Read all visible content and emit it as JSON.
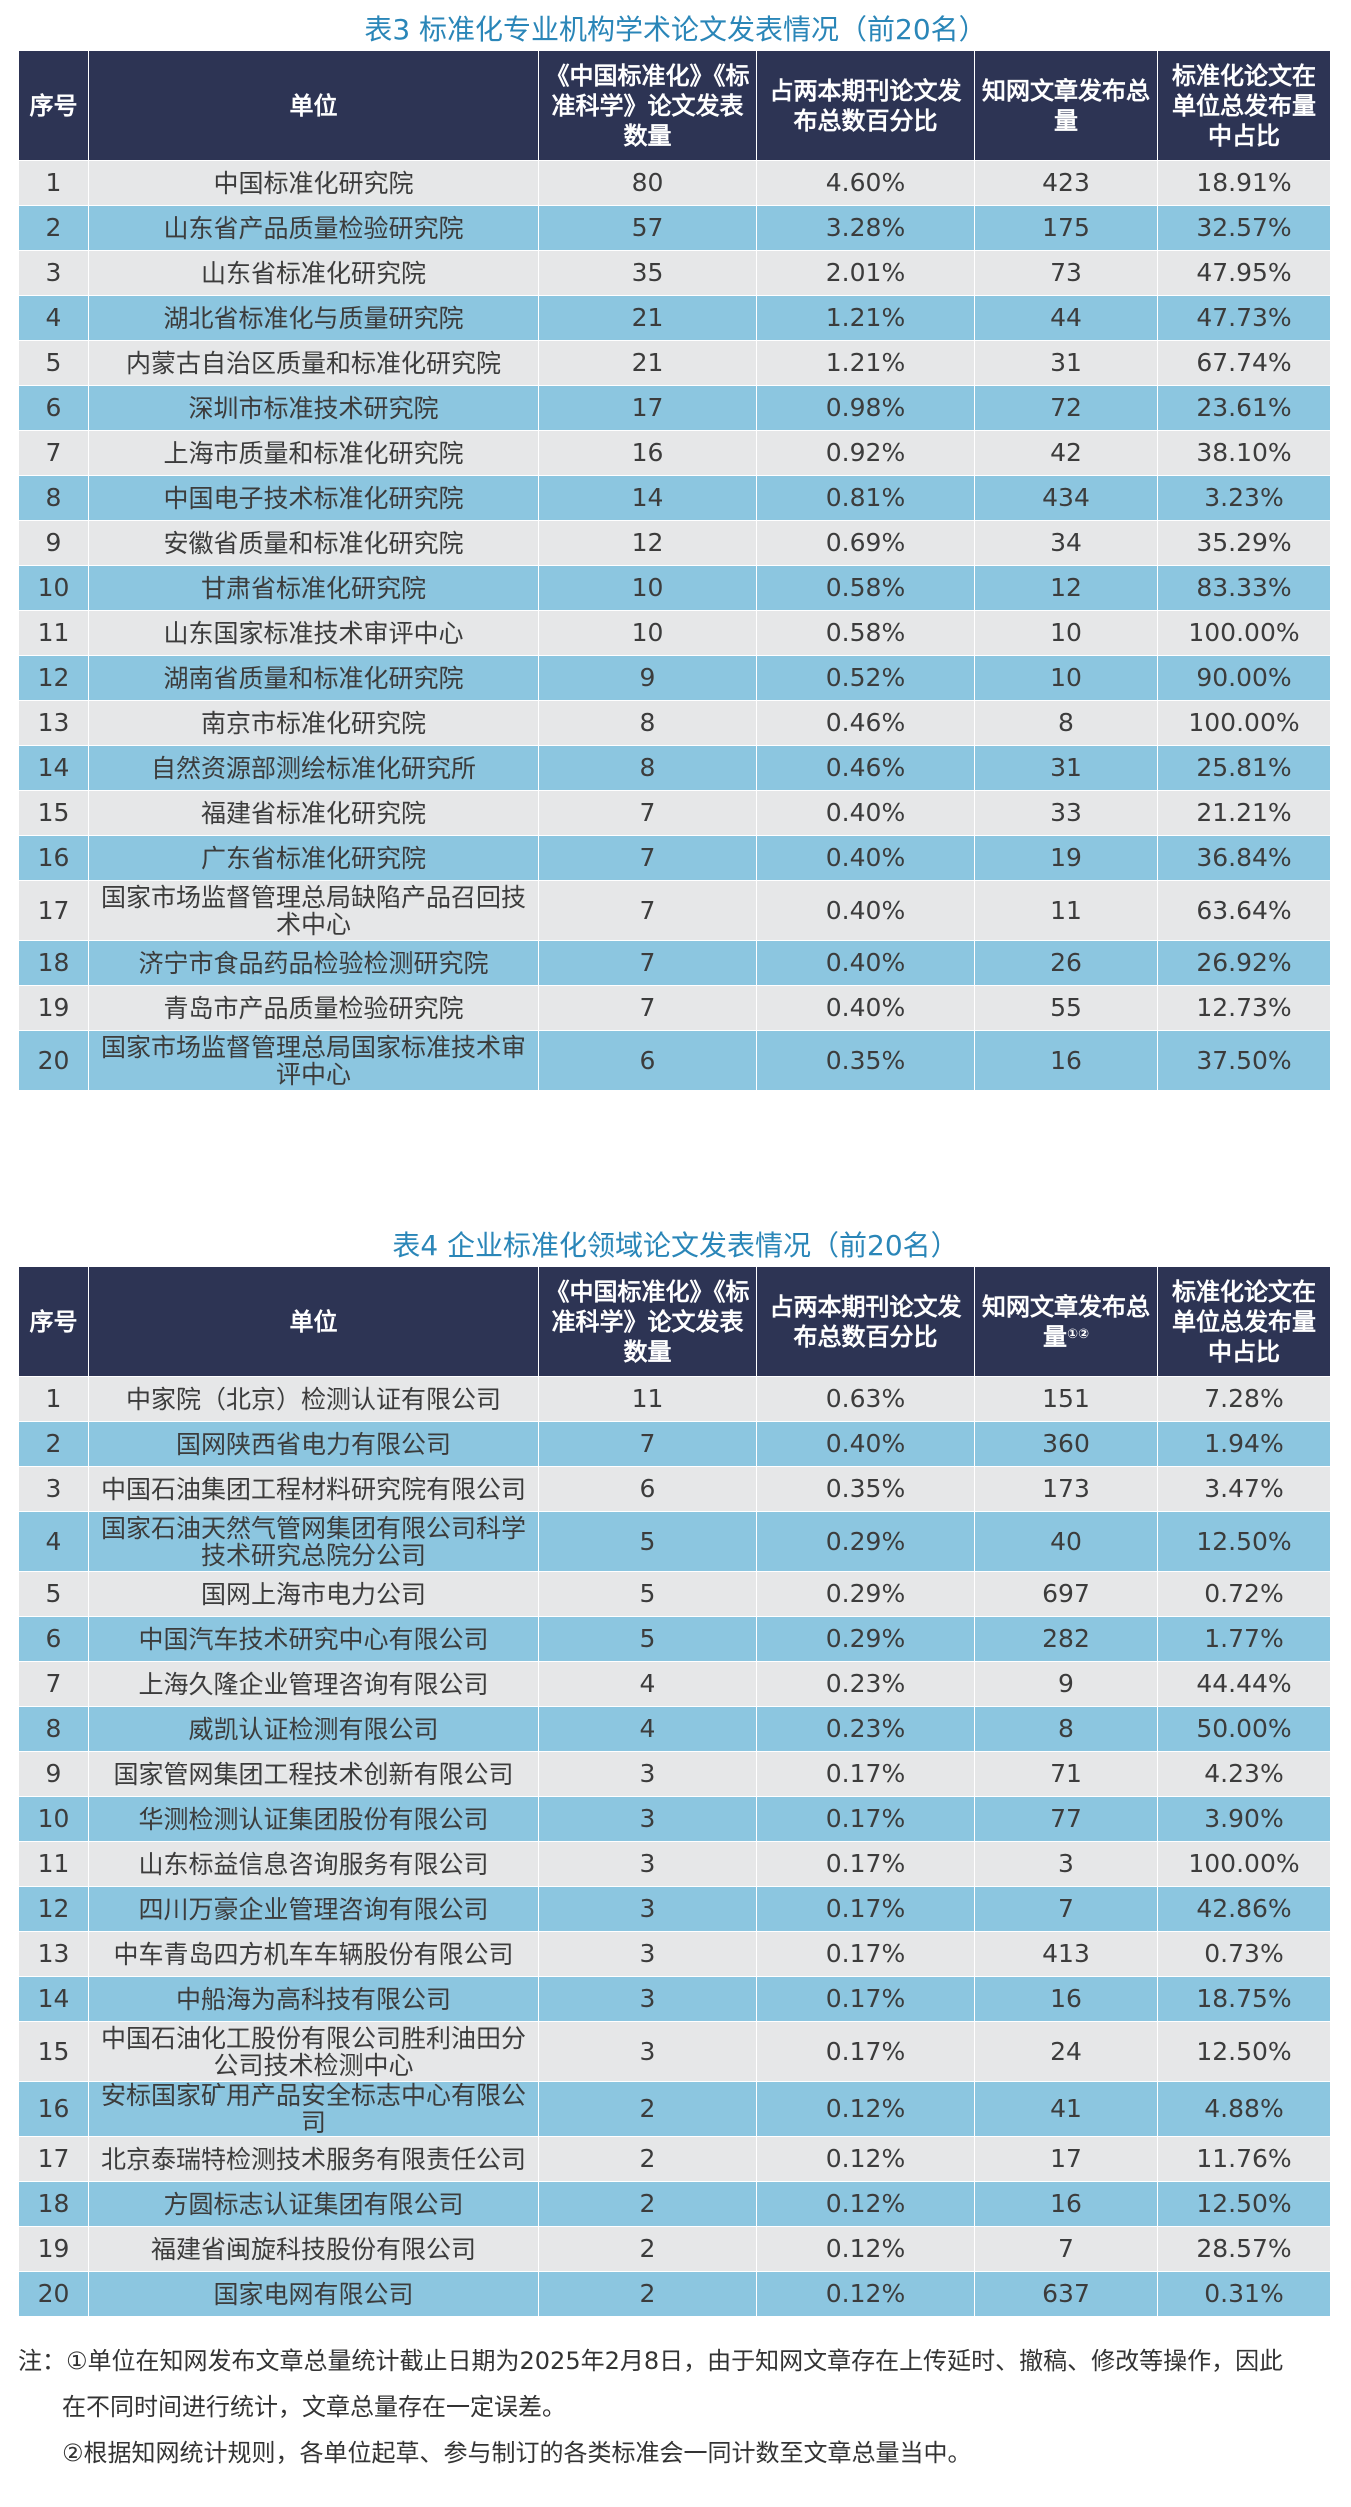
{
  "table3": {
    "title": "表3  标准化专业机构学术论文发表情况（前20名）",
    "headers": {
      "rank": "序号",
      "unit": "单位",
      "journals": "《中国标准化》《标准科学》论文发表数量",
      "percent": "占两本期刊论文发布总数百分比",
      "cnki": "知网文章发布总量",
      "share": "标准化论文在单位总发布量中占比"
    },
    "rows": [
      {
        "rank": "1",
        "unit": "中国标准化研究院",
        "count": "80",
        "pct": "4.60%",
        "cnki": "423",
        "share": "18.91%"
      },
      {
        "rank": "2",
        "unit": "山东省产品质量检验研究院",
        "count": "57",
        "pct": "3.28%",
        "cnki": "175",
        "share": "32.57%"
      },
      {
        "rank": "3",
        "unit": "山东省标准化研究院",
        "count": "35",
        "pct": "2.01%",
        "cnki": "73",
        "share": "47.95%"
      },
      {
        "rank": "4",
        "unit": "湖北省标准化与质量研究院",
        "count": "21",
        "pct": "1.21%",
        "cnki": "44",
        "share": "47.73%"
      },
      {
        "rank": "5",
        "unit": "内蒙古自治区质量和标准化研究院",
        "count": "21",
        "pct": "1.21%",
        "cnki": "31",
        "share": "67.74%"
      },
      {
        "rank": "6",
        "unit": "深圳市标准技术研究院",
        "count": "17",
        "pct": "0.98%",
        "cnki": "72",
        "share": "23.61%"
      },
      {
        "rank": "7",
        "unit": "上海市质量和标准化研究院",
        "count": "16",
        "pct": "0.92%",
        "cnki": "42",
        "share": "38.10%"
      },
      {
        "rank": "8",
        "unit": "中国电子技术标准化研究院",
        "count": "14",
        "pct": "0.81%",
        "cnki": "434",
        "share": "3.23%"
      },
      {
        "rank": "9",
        "unit": "安徽省质量和标准化研究院",
        "count": "12",
        "pct": "0.69%",
        "cnki": "34",
        "share": "35.29%"
      },
      {
        "rank": "10",
        "unit": "甘肃省标准化研究院",
        "count": "10",
        "pct": "0.58%",
        "cnki": "12",
        "share": "83.33%"
      },
      {
        "rank": "11",
        "unit": "山东国家标准技术审评中心",
        "count": "10",
        "pct": "0.58%",
        "cnki": "10",
        "share": "100.00%"
      },
      {
        "rank": "12",
        "unit": "湖南省质量和标准化研究院",
        "count": "9",
        "pct": "0.52%",
        "cnki": "10",
        "share": "90.00%"
      },
      {
        "rank": "13",
        "unit": "南京市标准化研究院",
        "count": "8",
        "pct": "0.46%",
        "cnki": "8",
        "share": "100.00%"
      },
      {
        "rank": "14",
        "unit": "自然资源部测绘标准化研究所",
        "count": "8",
        "pct": "0.46%",
        "cnki": "31",
        "share": "25.81%"
      },
      {
        "rank": "15",
        "unit": "福建省标准化研究院",
        "count": "7",
        "pct": "0.40%",
        "cnki": "33",
        "share": "21.21%"
      },
      {
        "rank": "16",
        "unit": "广东省标准化研究院",
        "count": "7",
        "pct": "0.40%",
        "cnki": "19",
        "share": "36.84%"
      },
      {
        "rank": "17",
        "unit": "国家市场监督管理总局缺陷产品召回技术中心",
        "count": "7",
        "pct": "0.40%",
        "cnki": "11",
        "share": "63.64%"
      },
      {
        "rank": "18",
        "unit": "济宁市食品药品检验检测研究院",
        "count": "7",
        "pct": "0.40%",
        "cnki": "26",
        "share": "26.92%"
      },
      {
        "rank": "19",
        "unit": "青岛市产品质量检验研究院",
        "count": "7",
        "pct": "0.40%",
        "cnki": "55",
        "share": "12.73%"
      },
      {
        "rank": "20",
        "unit": "国家市场监督管理总局国家标准技术审评中心",
        "count": "6",
        "pct": "0.35%",
        "cnki": "16",
        "share": "37.50%"
      }
    ]
  },
  "table4": {
    "title": "表4  企业标准化领域论文发表情况（前20名）",
    "headers": {
      "rank": "序号",
      "unit": "单位",
      "journals": "《中国标准化》《标准科学》论文发表数量",
      "percent": "占两本期刊论文发布总数百分比",
      "cnki": "知网文章发布总量",
      "cnki_mark": "①②",
      "share": "标准化论文在单位总发布量中占比"
    },
    "rows": [
      {
        "rank": "1",
        "unit": "中家院（北京）检测认证有限公司",
        "count": "11",
        "pct": "0.63%",
        "cnki": "151",
        "share": "7.28%"
      },
      {
        "rank": "2",
        "unit": "国网陕西省电力有限公司",
        "count": "7",
        "pct": "0.40%",
        "cnki": "360",
        "share": "1.94%"
      },
      {
        "rank": "3",
        "unit": "中国石油集团工程材料研究院有限公司",
        "count": "6",
        "pct": "0.35%",
        "cnki": "173",
        "share": "3.47%"
      },
      {
        "rank": "4",
        "unit": "国家石油天然气管网集团有限公司科学技术研究总院分公司",
        "count": "5",
        "pct": "0.29%",
        "cnki": "40",
        "share": "12.50%"
      },
      {
        "rank": "5",
        "unit": "国网上海市电力公司",
        "count": "5",
        "pct": "0.29%",
        "cnki": "697",
        "share": "0.72%"
      },
      {
        "rank": "6",
        "unit": "中国汽车技术研究中心有限公司",
        "count": "5",
        "pct": "0.29%",
        "cnki": "282",
        "share": "1.77%"
      },
      {
        "rank": "7",
        "unit": "上海久隆企业管理咨询有限公司",
        "count": "4",
        "pct": "0.23%",
        "cnki": "9",
        "share": "44.44%"
      },
      {
        "rank": "8",
        "unit": "威凯认证检测有限公司",
        "count": "4",
        "pct": "0.23%",
        "cnki": "8",
        "share": "50.00%"
      },
      {
        "rank": "9",
        "unit": "国家管网集团工程技术创新有限公司",
        "count": "3",
        "pct": "0.17%",
        "cnki": "71",
        "share": "4.23%"
      },
      {
        "rank": "10",
        "unit": "华测检测认证集团股份有限公司",
        "count": "3",
        "pct": "0.17%",
        "cnki": "77",
        "share": "3.90%"
      },
      {
        "rank": "11",
        "unit": "山东标益信息咨询服务有限公司",
        "count": "3",
        "pct": "0.17%",
        "cnki": "3",
        "share": "100.00%"
      },
      {
        "rank": "12",
        "unit": "四川万豪企业管理咨询有限公司",
        "count": "3",
        "pct": "0.17%",
        "cnki": "7",
        "share": "42.86%"
      },
      {
        "rank": "13",
        "unit": "中车青岛四方机车车辆股份有限公司",
        "count": "3",
        "pct": "0.17%",
        "cnki": "413",
        "share": "0.73%"
      },
      {
        "rank": "14",
        "unit": "中船海为高科技有限公司",
        "count": "3",
        "pct": "0.17%",
        "cnki": "16",
        "share": "18.75%"
      },
      {
        "rank": "15",
        "unit": "中国石油化工股份有限公司胜利油田分公司技术检测中心",
        "count": "3",
        "pct": "0.17%",
        "cnki": "24",
        "share": "12.50%"
      },
      {
        "rank": "16",
        "unit": "安标国家矿用产品安全标志中心有限公司",
        "count": "2",
        "pct": "0.12%",
        "cnki": "41",
        "share": "4.88%"
      },
      {
        "rank": "17",
        "unit": "北京泰瑞特检测技术服务有限责任公司",
        "count": "2",
        "pct": "0.12%",
        "cnki": "17",
        "share": "11.76%"
      },
      {
        "rank": "18",
        "unit": "方圆标志认证集团有限公司",
        "count": "2",
        "pct": "0.12%",
        "cnki": "16",
        "share": "12.50%"
      },
      {
        "rank": "19",
        "unit": "福建省闽旋科技股份有限公司",
        "count": "2",
        "pct": "0.12%",
        "cnki": "7",
        "share": "28.57%"
      },
      {
        "rank": "20",
        "unit": "国家电网有限公司",
        "count": "2",
        "pct": "0.12%",
        "cnki": "637",
        "share": "0.31%"
      }
    ]
  },
  "notes": [
    "注：①单位在知网发布文章总量统计截止日期为2025年2月8日，由于知网文章存在上传延时、撤稿、修改等操作，因此",
    "在不同时间进行统计，文章总量存在一定误差。",
    "②根据知网统计规则，各单位起草、参与制订的各类标准会一同计数至文章总量当中。"
  ]
}
